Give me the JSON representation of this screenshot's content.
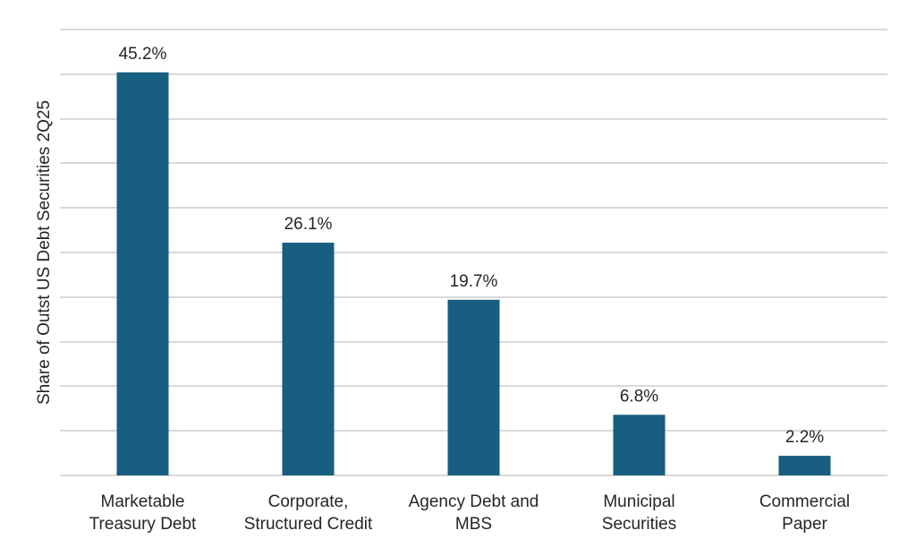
{
  "chart_data": {
    "type": "bar",
    "title": "",
    "xlabel": "",
    "ylabel": "Share of Outst US Debt Securities 2Q25",
    "categories": [
      [
        "Marketable",
        "Treasury Debt"
      ],
      [
        "Corporate,",
        "Structured Credit"
      ],
      [
        "Agency Debt and",
        "MBS"
      ],
      [
        "Municipal",
        "Securities"
      ],
      [
        "Commercial",
        "Paper"
      ]
    ],
    "values": [
      45.2,
      26.1,
      19.7,
      6.8,
      2.2
    ],
    "data_labels": [
      "45.2%",
      "26.1%",
      "19.7%",
      "6.8%",
      "2.2%"
    ],
    "ylim": [
      0,
      50
    ],
    "ytick_step": 5,
    "ytick_labels_visible": false,
    "grid": true,
    "legend": "none",
    "colors": {
      "bar": "#175e80",
      "grid": "#d9d9d9",
      "text": "#262626"
    }
  }
}
